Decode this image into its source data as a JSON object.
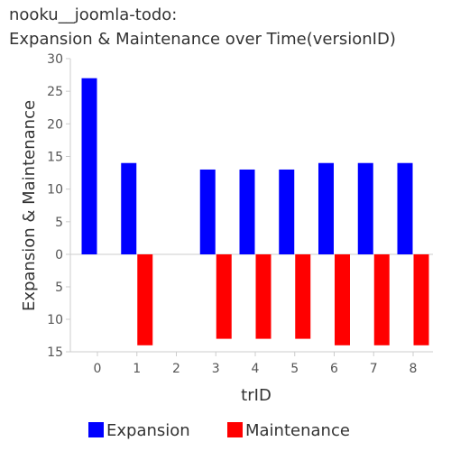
{
  "title": {
    "line1": "nooku__joomla-todo:",
    "line2": "Expansion & Maintenance over Time(versionID)"
  },
  "chart_data": {
    "type": "bar",
    "title": "nooku__joomla-todo: Expansion & Maintenance over Time(versionID)",
    "xlabel": "trID",
    "ylabel": "Expansion & Maintenance",
    "categories": [
      "0",
      "1",
      "2",
      "3",
      "4",
      "5",
      "6",
      "7",
      "8"
    ],
    "series": [
      {
        "name": "Expansion",
        "color": "#0000ff",
        "direction": "up",
        "values": [
          27,
          14,
          0,
          13,
          13,
          13,
          14,
          14,
          14
        ]
      },
      {
        "name": "Maintenance",
        "color": "#ff0000",
        "direction": "down",
        "values": [
          0,
          14,
          0,
          13,
          13,
          13,
          14,
          14,
          14
        ]
      }
    ],
    "y_ticks_up": [
      "30",
      "25",
      "20",
      "15",
      "10",
      "5",
      "0"
    ],
    "y_ticks_down": [
      "5",
      "10",
      "15"
    ],
    "ylim_up": [
      0,
      30
    ],
    "ylim_down": [
      0,
      15
    ],
    "grid": false,
    "legend_position": "bottom"
  }
}
